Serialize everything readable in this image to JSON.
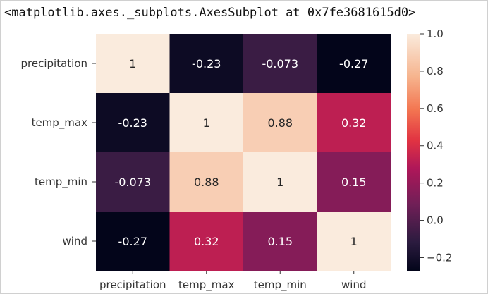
{
  "header": {
    "repr_text": "<matplotlib.axes._subplots.AxesSubplot at 0x7fe3681615d0>"
  },
  "chart_data": {
    "type": "heatmap",
    "rows": [
      "precipitation",
      "temp_max",
      "temp_min",
      "wind"
    ],
    "cols": [
      "precipitation",
      "temp_max",
      "temp_min",
      "wind"
    ],
    "values": [
      [
        1,
        -0.23,
        -0.073,
        -0.27
      ],
      [
        -0.23,
        1,
        0.88,
        0.32
      ],
      [
        -0.073,
        0.88,
        1,
        0.15
      ],
      [
        -0.27,
        0.32,
        0.15,
        1
      ]
    ],
    "annotations": [
      [
        "1",
        "-0.23",
        "-0.073",
        "-0.27"
      ],
      [
        "-0.23",
        "1",
        "0.88",
        "0.32"
      ],
      [
        "-0.073",
        "0.88",
        "1",
        "0.15"
      ],
      [
        "-0.27",
        "0.32",
        "0.15",
        "1"
      ]
    ],
    "colorbar": {
      "min": -0.27,
      "max": 1.0,
      "ticks": [
        1.0,
        0.8,
        0.6,
        0.4,
        0.2,
        0.0,
        -0.2
      ],
      "tick_labels": [
        "1.0",
        "0.8",
        "0.6",
        "0.4",
        "0.2",
        "0.0",
        "−0.2"
      ]
    },
    "colormap": "rocket",
    "title": "",
    "xlabel": "",
    "ylabel": ""
  }
}
